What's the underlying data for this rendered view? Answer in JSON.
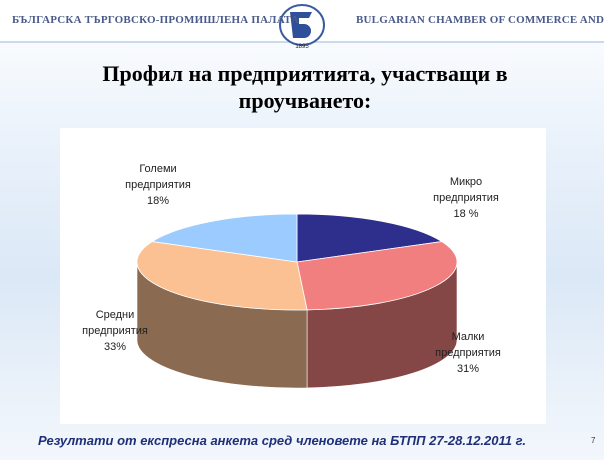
{
  "header": {
    "left": "БЪЛГАРСКА ТЪРГОВСКО-ПРОМИШЛЕНА ПАЛАТА",
    "right": "BULGARIAN CHAMBER OF COMMERCE AND INDUSTRY",
    "logo_year": "1895"
  },
  "slide_title": "Профил на предприятията, участващи в проучването:",
  "chart_data": {
    "type": "pie3d",
    "categories": [
      "Микро предприятия",
      "Малки предприятия",
      "Средни предприятия",
      "Големи предприятия"
    ],
    "values": [
      18,
      31,
      33,
      18
    ],
    "value_labels": [
      "18 %",
      "31%",
      "33%",
      "18%"
    ],
    "colors": [
      "#2e2e8c",
      "#f27f7f",
      "#fbc192",
      "#9bcbff"
    ]
  },
  "footer": "Резултати от експресна анкета сред членовете на БТПП 27-28.12.2011 г.",
  "page_number": "7"
}
